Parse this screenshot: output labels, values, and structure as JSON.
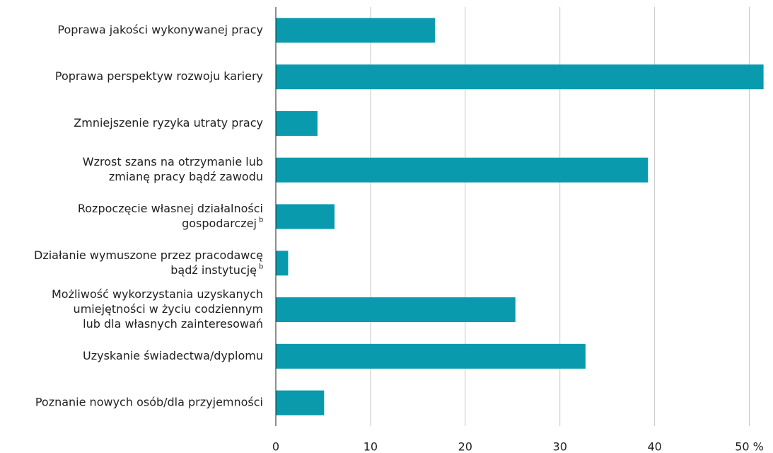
{
  "chart_data": {
    "type": "bar",
    "orientation": "horizontal",
    "categories": [
      [
        "Poprawa jakości wykonywanej pracy"
      ],
      [
        "Poprawa perspektyw rozwoju kariery"
      ],
      [
        "Zmniejszenie ryzyka utraty pracy"
      ],
      [
        "Wzrost szans na otrzymanie lub",
        "zmianę pracy bądź zawodu"
      ],
      [
        "Rozpoczęcie własnej działalności",
        "gospodarczej"
      ],
      [
        "Działanie wymuszone przez pracodawcę",
        "bądź instytucję"
      ],
      [
        "Możliwość wykorzystania uzyskanych",
        "umiejętności w życiu codziennym",
        "lub dla własnych zainteresowań"
      ],
      [
        "Uzyskanie świadectwa/dyplomu"
      ],
      [
        "Poznanie nowych osób/dla przyjemności"
      ]
    ],
    "category_notes": [
      null,
      null,
      null,
      null,
      "b",
      "b",
      null,
      null,
      null
    ],
    "values": [
      16.8,
      51.5,
      4.4,
      39.3,
      6.2,
      1.3,
      25.3,
      32.7,
      5.1
    ],
    "color": "#0a9aad",
    "xlim": [
      0,
      52.5
    ],
    "xticks": [
      0,
      10,
      20,
      30,
      40,
      {
        "value": 50,
        "label": "50 %"
      }
    ],
    "grid": true
  }
}
